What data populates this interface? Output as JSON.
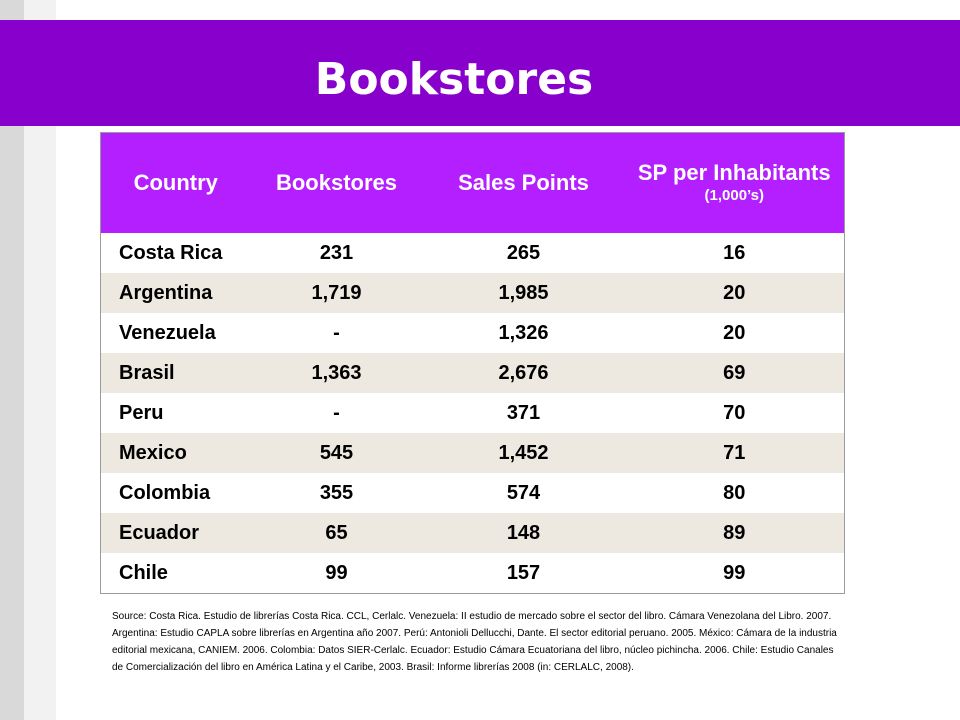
{
  "slide": {
    "title": "Bookstores"
  },
  "table": {
    "headers": {
      "country": "Country",
      "bookstores": "Bookstores",
      "sales_points": "Sales Points",
      "sp_per_inhabitants": "SP per Inhabitants",
      "sp_unit": "(1,000’s)"
    },
    "rows": [
      {
        "country": "Costa Rica",
        "bookstores": "231",
        "sales_points": "265",
        "sp_per_inhabitants": "16"
      },
      {
        "country": "Argentina",
        "bookstores": "1,719",
        "sales_points": "1,985",
        "sp_per_inhabitants": "20"
      },
      {
        "country": "Venezuela",
        "bookstores": "-",
        "sales_points": "1,326",
        "sp_per_inhabitants": "20"
      },
      {
        "country": "Brasil",
        "bookstores": "1,363",
        "sales_points": "2,676",
        "sp_per_inhabitants": "69"
      },
      {
        "country": "Peru",
        "bookstores": "-",
        "sales_points": "371",
        "sp_per_inhabitants": "70"
      },
      {
        "country": "Mexico",
        "bookstores": "545",
        "sales_points": "1,452",
        "sp_per_inhabitants": "71"
      },
      {
        "country": "Colombia",
        "bookstores": "355",
        "sales_points": "574",
        "sp_per_inhabitants": "80"
      },
      {
        "country": "Ecuador",
        "bookstores": "65",
        "sales_points": "148",
        "sp_per_inhabitants": "89"
      },
      {
        "country": "Chile",
        "bookstores": "99",
        "sales_points": "157",
        "sp_per_inhabitants": "99"
      }
    ]
  },
  "source_note": "Source: Costa Rica. Estudio de librerías Costa Rica. CCL, Cerlalc. Venezuela: II estudio de mercado sobre el sector del libro. Cámara Venezolana del Libro. 2007. Argentina: Estudio CAPLA sobre librerías en Argentina año 2007. Perú: Antonioli Dellucchi, Dante. El sector editorial peruano. 2005. México: Cámara de la industria editorial mexicana, CANIEM. 2006. Colombia: Datos SIER-Cerlalc. Ecuador: Estudio Cámara Ecuatoriana del libro, núcleo pichincha. 2006. Chile: Estudio Canales de Comercialización del libro en América Latina y el Caribe, 2003. Brasil: Informe librerías 2008 (in: CERLALC, 2008).",
  "colors": {
    "title_band": "#8800cc",
    "header_fill": "#b41fff",
    "row_alt_fill": "#ede9e0"
  }
}
